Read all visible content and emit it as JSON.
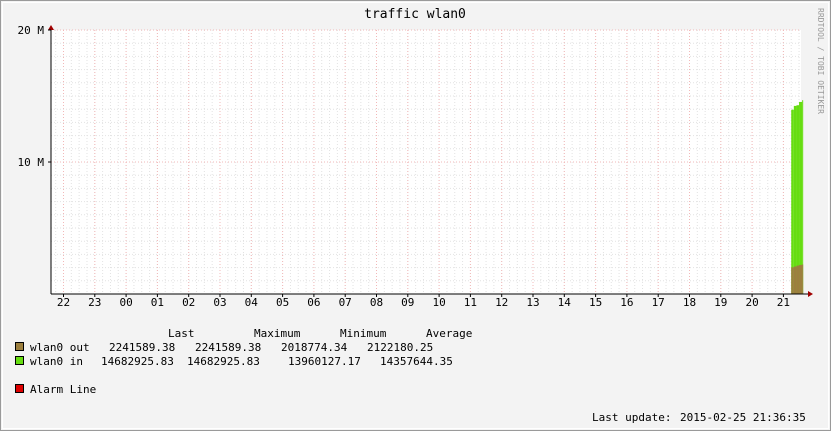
{
  "title": "traffic  wlan0",
  "watermark": "RRDTOOL / TOBI OETIKER",
  "chart_data": {
    "type": "area",
    "title": "traffic  wlan0",
    "xlabel": "",
    "ylabel": "",
    "x_ticks": [
      "22",
      "23",
      "00",
      "01",
      "02",
      "03",
      "04",
      "05",
      "06",
      "07",
      "08",
      "09",
      "10",
      "11",
      "12",
      "13",
      "14",
      "15",
      "16",
      "17",
      "18",
      "19",
      "20",
      "21"
    ],
    "y_ticks": [
      {
        "label": "20 M",
        "value": 20000000
      },
      {
        "label": "10 M",
        "value": 10000000
      }
    ],
    "ylim": [
      0,
      20000000
    ],
    "grid": true,
    "series": [
      {
        "name": "wlan0 out",
        "color": "#9c7f3e",
        "x": [
          "21:15",
          "21:20",
          "21:25",
          "21:30",
          "21:36"
        ],
        "values": [
          2018774.34,
          2080000,
          2150000,
          2200000,
          2241589.38
        ]
      },
      {
        "name": "wlan0 in",
        "color": "#66dd11",
        "x": [
          "21:15",
          "21:20",
          "21:25",
          "21:30",
          "21:36"
        ],
        "values": [
          13960127.17,
          14250000,
          14300000,
          14550000,
          14682925.83
        ]
      }
    ]
  },
  "legend": {
    "headers": [
      "Last",
      "Maximum",
      "Minimum",
      "Average"
    ],
    "rows": [
      {
        "name": "wlan0 out",
        "color": "#9c7f3e",
        "last": "2241589.38",
        "maximum": "2241589.38",
        "minimum": "2018774.34",
        "average": "2122180.25"
      },
      {
        "name": "wlan0 in",
        "color": "#66dd11",
        "last": "14682925.83",
        "maximum": "14682925.83",
        "minimum": "13960127.17",
        "average": "14357644.35"
      }
    ],
    "alarm": {
      "name": "Alarm Line",
      "color": "#dd0000"
    }
  },
  "footer": {
    "last_update_label": "Last update:",
    "last_update_value": "2015-02-25  21:36:35"
  }
}
